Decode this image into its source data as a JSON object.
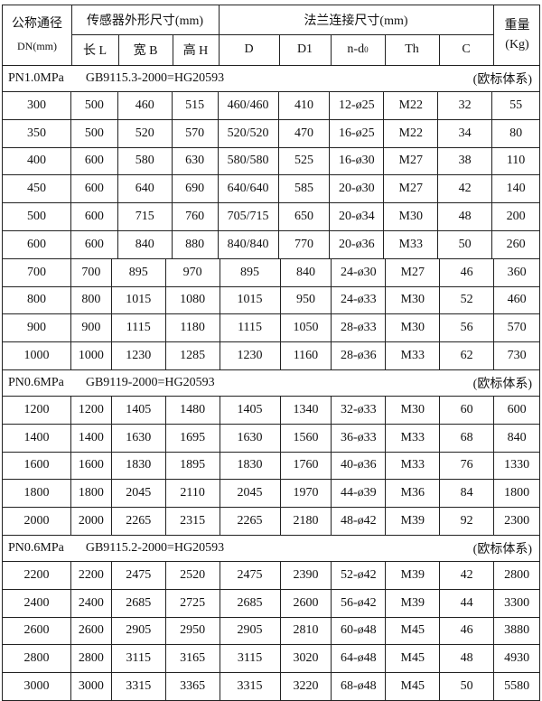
{
  "header": {
    "dn_label": "公称通径",
    "dn_unit": "DN(mm)",
    "sensor": "传感器外形尺寸(mm)",
    "flange": "法兰连接尺寸(mm)",
    "weight": "重量",
    "weight_unit": "(Kg)",
    "cols": [
      "长 L",
      "宽 B",
      "高 H",
      "D",
      "D1",
      "n-d",
      "Th",
      "C"
    ],
    "nd_sub": "0"
  },
  "sections": [
    {
      "pn": "PN1.0MPa",
      "std": "GB9115.3-2000=HG20593",
      "system": "(欧标体系)",
      "rows": [
        [
          "300",
          "500",
          "460",
          "515",
          "460/460",
          "410",
          "12-ø25",
          "M22",
          "32",
          "55"
        ],
        [
          "350",
          "500",
          "520",
          "570",
          "520/520",
          "470",
          "16-ø25",
          "M22",
          "34",
          "80"
        ],
        [
          "400",
          "600",
          "580",
          "630",
          "580/580",
          "525",
          "16-ø30",
          "M27",
          "38",
          "110"
        ],
        [
          "450",
          "600",
          "640",
          "690",
          "640/640",
          "585",
          "20-ø30",
          "M27",
          "42",
          "140"
        ],
        [
          "500",
          "600",
          "715",
          "760",
          "705/715",
          "650",
          "20-ø34",
          "M30",
          "48",
          "200"
        ],
        [
          "600",
          "600",
          "840",
          "880",
          "840/840",
          "770",
          "20-ø36",
          "M33",
          "50",
          "260"
        ],
        [
          "700",
          "700",
          "895",
          "970",
          "895",
          "840",
          "24-ø30",
          "M27",
          "46",
          "360"
        ],
        [
          "800",
          "800",
          "1015",
          "1080",
          "1015",
          "950",
          "24-ø33",
          "M30",
          "52",
          "460"
        ],
        [
          "900",
          "900",
          "1115",
          "1180",
          "1115",
          "1050",
          "28-ø33",
          "M30",
          "56",
          "570"
        ],
        [
          "1000",
          "1000",
          "1230",
          "1285",
          "1230",
          "1160",
          "28-ø36",
          "M33",
          "62",
          "730"
        ]
      ]
    },
    {
      "pn": "PN0.6MPa",
      "std": "GB9119-2000=HG20593",
      "system": "(欧标体系)",
      "rows": [
        [
          "1200",
          "1200",
          "1405",
          "1480",
          "1405",
          "1340",
          "32-ø33",
          "M30",
          "60",
          "600"
        ],
        [
          "1400",
          "1400",
          "1630",
          "1695",
          "1630",
          "1560",
          "36-ø33",
          "M33",
          "68",
          "840"
        ],
        [
          "1600",
          "1600",
          "1830",
          "1895",
          "1830",
          "1760",
          "40-ø36",
          "M33",
          "76",
          "1330"
        ],
        [
          "1800",
          "1800",
          "2045",
          "2110",
          "2045",
          "1970",
          "44-ø39",
          "M36",
          "84",
          "1800"
        ],
        [
          "2000",
          "2000",
          "2265",
          "2315",
          "2265",
          "2180",
          "48-ø42",
          "M39",
          "92",
          "2300"
        ]
      ]
    },
    {
      "pn": "PN0.6MPa",
      "std": "GB9115.2-2000=HG20593",
      "system": "(欧标体系)",
      "rows": [
        [
          "2200",
          "2200",
          "2475",
          "2520",
          "2475",
          "2390",
          "52-ø42",
          "M39",
          "42",
          "2800"
        ],
        [
          "2400",
          "2400",
          "2685",
          "2725",
          "2685",
          "2600",
          "56-ø42",
          "M39",
          "44",
          "3300"
        ],
        [
          "2600",
          "2600",
          "2905",
          "2950",
          "2905",
          "2810",
          "60-ø48",
          "M45",
          "46",
          "3880"
        ],
        [
          "2800",
          "2800",
          "3115",
          "3165",
          "3115",
          "3020",
          "64-ø48",
          "M45",
          "48",
          "4930"
        ],
        [
          "3000",
          "3000",
          "3315",
          "3365",
          "3315",
          "3220",
          "68-ø48",
          "M45",
          "50",
          "5580"
        ]
      ]
    }
  ]
}
